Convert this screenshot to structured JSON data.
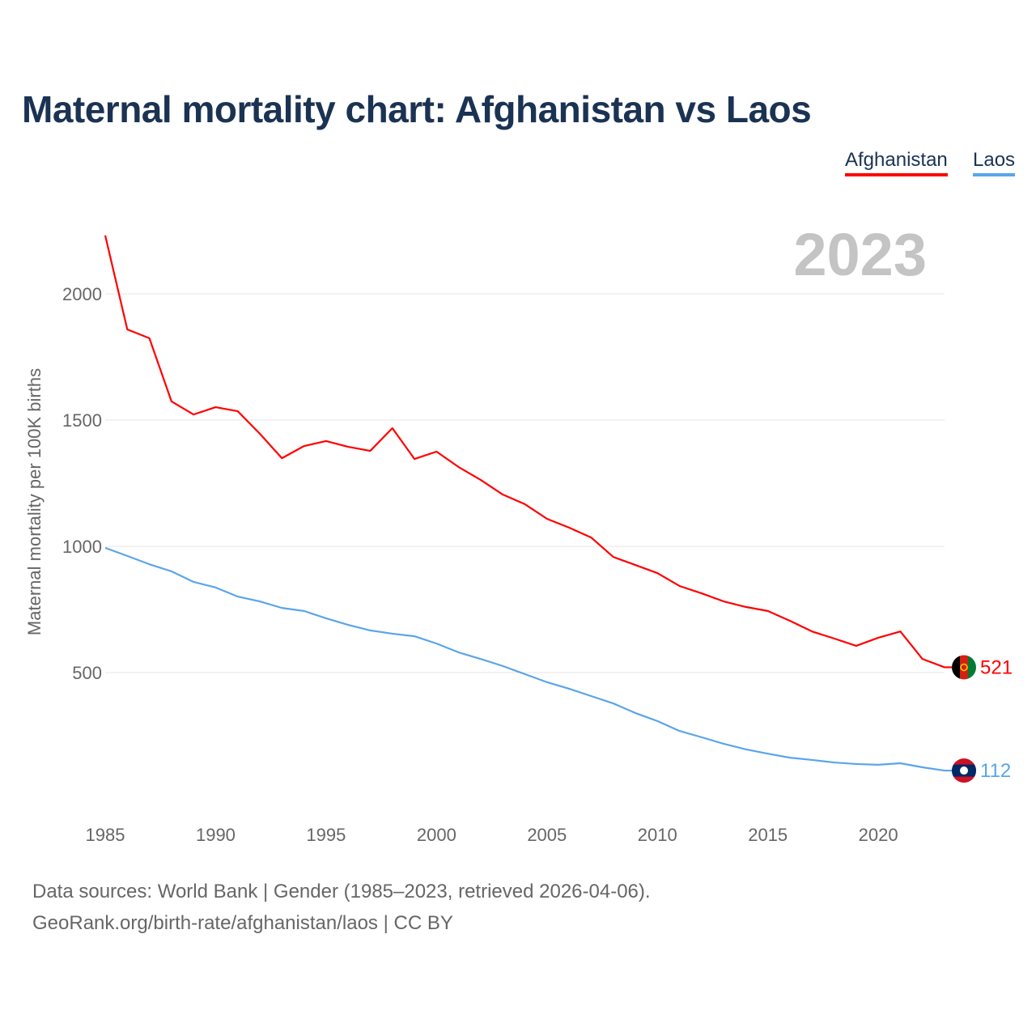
{
  "chart_data": {
    "type": "line",
    "title": "Maternal mortality chart: Afghanistan vs Laos",
    "ylabel": "Maternal mortality per 100K births",
    "xlabel": "",
    "xlim": [
      1985,
      2023
    ],
    "ylim": [
      0,
      2300
    ],
    "x_ticks": [
      1985,
      1990,
      1995,
      2000,
      2005,
      2010,
      2015,
      2020
    ],
    "y_ticks": [
      500,
      1000,
      1500,
      2000
    ],
    "grid": true,
    "legend_position": "top-right",
    "year_label": "2023",
    "x": [
      1985,
      1986,
      1987,
      1988,
      1989,
      1990,
      1991,
      1992,
      1993,
      1994,
      1995,
      1996,
      1997,
      1998,
      1999,
      2000,
      2001,
      2002,
      2003,
      2004,
      2005,
      2006,
      2007,
      2008,
      2009,
      2010,
      2011,
      2012,
      2013,
      2014,
      2015,
      2016,
      2017,
      2018,
      2019,
      2020,
      2021,
      2022,
      2023
    ],
    "series": [
      {
        "name": "Afghanistan",
        "color": "#ff0000",
        "end_label": "521",
        "values": [
          2231,
          1859,
          1824,
          1574,
          1522,
          1551,
          1535,
          1446,
          1349,
          1397,
          1417,
          1394,
          1378,
          1468,
          1346,
          1375,
          1314,
          1263,
          1205,
          1167,
          1109,
          1074,
          1035,
          958,
          926,
          894,
          843,
          814,
          782,
          760,
          744,
          705,
          663,
          635,
          606,
          638,
          663,
          554,
          521
        ]
      },
      {
        "name": "Laos",
        "color": "#5aa5ea",
        "end_label": "112",
        "values": [
          994,
          962,
          929,
          901,
          859,
          837,
          801,
          782,
          756,
          744,
          715,
          689,
          667,
          654,
          644,
          615,
          580,
          554,
          526,
          494,
          462,
          436,
          407,
          378,
          340,
          308,
          269,
          244,
          218,
          196,
          179,
          163,
          154,
          144,
          138,
          135,
          141,
          125,
          112
        ]
      }
    ]
  },
  "footer": {
    "line1": "Data sources: World Bank | Gender (1985–2023, retrieved 2026-04-06).",
    "line2": "GeoRank.org/birth-rate/afghanistan/laos | CC BY"
  }
}
